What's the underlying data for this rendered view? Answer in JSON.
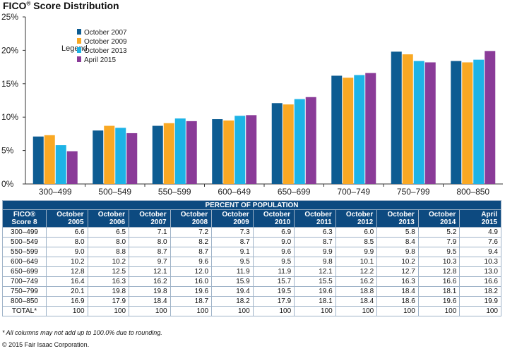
{
  "title": "FICO",
  "title_mark": "®",
  "title_rest": " Score Distribution",
  "colors": {
    "October 2007": "#0d5c92",
    "October 2009": "#f9a823",
    "October 2013": "#1db3e6",
    "April 2015": "#8a3b98",
    "header_bg": "#0d4a80"
  },
  "chart_data": {
    "type": "bar",
    "categories": [
      "300–499",
      "500–549",
      "550–599",
      "600–649",
      "650–699",
      "700–749",
      "750–799",
      "800–850"
    ],
    "series": [
      {
        "name": "October 2007",
        "values": [
          7.1,
          8.0,
          8.7,
          9.7,
          12.1,
          16.2,
          19.8,
          18.4
        ]
      },
      {
        "name": "October 2009",
        "values": [
          7.3,
          8.7,
          9.1,
          9.5,
          11.9,
          15.9,
          19.4,
          18.2
        ]
      },
      {
        "name": "October 2013",
        "values": [
          5.8,
          8.4,
          9.8,
          10.2,
          12.7,
          16.3,
          18.4,
          18.6
        ]
      },
      {
        "name": "April 2015",
        "values": [
          4.9,
          7.6,
          9.4,
          10.3,
          13.0,
          16.6,
          18.2,
          19.9
        ]
      }
    ],
    "ylim": [
      0,
      25
    ],
    "yticks": [
      "0%",
      "5%",
      "10%",
      "15%",
      "20%",
      "25%"
    ],
    "ytick_values": [
      0,
      5,
      10,
      15,
      20,
      25
    ],
    "legend_title": "Legend",
    "legend_position": "top-left",
    "grid": false
  },
  "table": {
    "banner": "PERCENT OF POPULATION",
    "header_first": [
      "FICO®",
      "Score 8"
    ],
    "columns": [
      [
        "October",
        "2005"
      ],
      [
        "October",
        "2006"
      ],
      [
        "October",
        "2007"
      ],
      [
        "October",
        "2008"
      ],
      [
        "October",
        "2009"
      ],
      [
        "October",
        "2010"
      ],
      [
        "October",
        "2011"
      ],
      [
        "October",
        "2012"
      ],
      [
        "October",
        "2013"
      ],
      [
        "October",
        "2014"
      ],
      [
        "April",
        "2015"
      ]
    ],
    "rows": [
      {
        "label": "300–499",
        "values": [
          "6.6",
          "6.5",
          "7.1",
          "7.2",
          "7.3",
          "6.9",
          "6.3",
          "6.0",
          "5.8",
          "5.2",
          "4.9"
        ]
      },
      {
        "label": "500–549",
        "values": [
          "8.0",
          "8.0",
          "8.0",
          "8.2",
          "8.7",
          "9.0",
          "8.7",
          "8.5",
          "8.4",
          "7.9",
          "7.6"
        ]
      },
      {
        "label": "550–599",
        "values": [
          "9.0",
          "8.8",
          "8.7",
          "8.7",
          "9.1",
          "9.6",
          "9.9",
          "9.9",
          "9.8",
          "9.5",
          "9.4"
        ]
      },
      {
        "label": "600–649",
        "values": [
          "10.2",
          "10.2",
          "9.7",
          "9.6",
          "9.5",
          "9.5",
          "9.8",
          "10.1",
          "10.2",
          "10.3",
          "10.3"
        ]
      },
      {
        "label": "650–699",
        "values": [
          "12.8",
          "12.5",
          "12.1",
          "12.0",
          "11.9",
          "11.9",
          "12.1",
          "12.2",
          "12.7",
          "12.8",
          "13.0"
        ]
      },
      {
        "label": "700–749",
        "values": [
          "16.4",
          "16.3",
          "16.2",
          "16.0",
          "15.9",
          "15.7",
          "15.5",
          "16.2",
          "16.3",
          "16.6",
          "16.6"
        ]
      },
      {
        "label": "750–799",
        "values": [
          "20.1",
          "19.8",
          "19.8",
          "19.6",
          "19.4",
          "19.5",
          "19.6",
          "18.8",
          "18.4",
          "18.1",
          "18.2"
        ]
      },
      {
        "label": "800–850",
        "values": [
          "16.9",
          "17.9",
          "18.4",
          "18.7",
          "18.2",
          "17.9",
          "18.1",
          "18.4",
          "18.6",
          "19.6",
          "19.9"
        ]
      },
      {
        "label": "TOTAL*",
        "values": [
          "100",
          "100",
          "100",
          "100",
          "100",
          "100",
          "100",
          "100",
          "100",
          "100",
          "100"
        ]
      }
    ]
  },
  "footnote": "* All columns may not add up to 100.0% due to rounding.",
  "copyright": "© 2015 Fair Isaac Corporation."
}
